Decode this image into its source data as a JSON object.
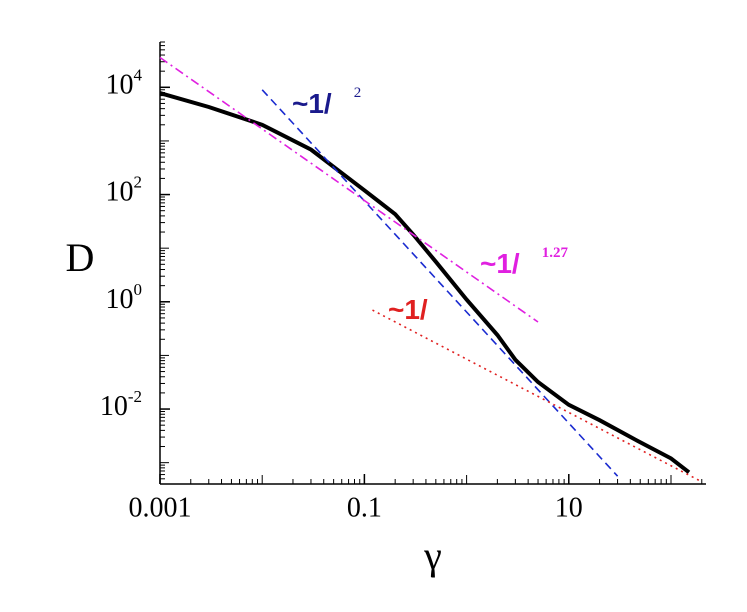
{
  "chart_data": {
    "type": "line",
    "xlabel": "γ",
    "ylabel": "D",
    "xscale": "log",
    "yscale": "log",
    "xlim": [
      0.001,
      220
    ],
    "ylim": [
      0.0004,
      70000
    ],
    "xticks": [
      0.001,
      0.1,
      10
    ],
    "yticks": [
      {
        "value": 0.01,
        "label": "10",
        "exponent": "-2"
      },
      {
        "value": 1,
        "label": "10",
        "exponent": "0"
      },
      {
        "value": 100,
        "label": "10",
        "exponent": "2"
      },
      {
        "value": 10000,
        "label": "10",
        "exponent": "4"
      }
    ],
    "series": [
      {
        "color": "#000000",
        "style": "solid",
        "x": [
          0.001,
          0.003,
          0.01,
          0.03,
          0.1,
          0.2,
          0.3,
          0.5,
          1,
          2,
          3,
          5,
          10,
          20,
          50,
          100,
          150
        ],
        "values": [
          7800,
          4300,
          2000,
          690,
          120,
          43,
          18,
          5.6,
          1.1,
          0.24,
          0.083,
          0.032,
          0.012,
          0.0062,
          0.0024,
          0.0012,
          0.00066
        ]
      },
      {
        "color": "#1a2bd0",
        "style": "dashed",
        "x": [
          0.01,
          30
        ],
        "values": [
          9000,
          0.00056
        ]
      },
      {
        "color": "#e020e0",
        "style": "dashdot",
        "x": [
          0.001,
          5
        ],
        "values": [
          36000,
          0.42
        ]
      },
      {
        "color": "#e02020",
        "style": "dotted",
        "x": [
          0.12,
          200
        ],
        "values": [
          0.7,
          0.00044
        ]
      }
    ],
    "annotations": [
      {
        "text": "~1/",
        "exponent": "2",
        "color": "#1a1a8c"
      },
      {
        "text": "~1/",
        "exponent": "1.27",
        "color": "#e020e0"
      },
      {
        "text": "~1/",
        "exponent": "",
        "color": "#e02020"
      }
    ]
  }
}
